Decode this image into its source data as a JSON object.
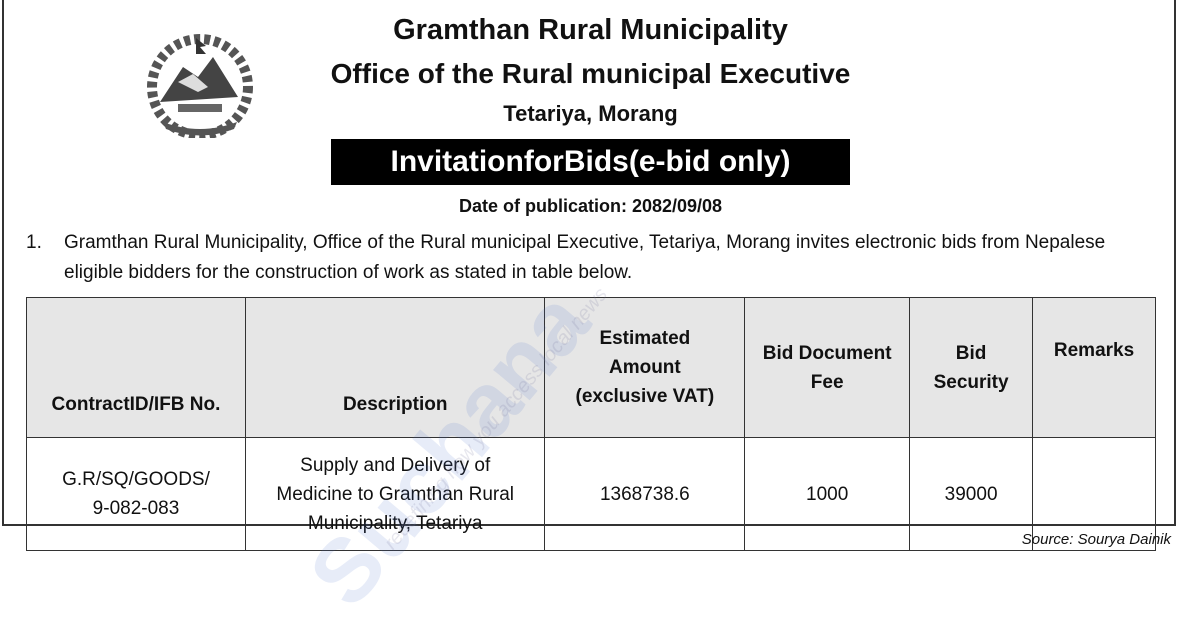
{
  "header": {
    "title": "Gramthan Rural Municipality",
    "office": "Office of the Rural municipal Executive",
    "location": "Tetariya, Morang",
    "notice_title": "InvitationforBids(e-bid only)",
    "date": "Date of publication: 2082/09/08"
  },
  "body": {
    "number": "1.",
    "text": "Gramthan Rural Municipality, Office of the Rural municipal Executive, Tetariya, Morang invites electronic bids from Nepalese eligible bidders for the construction of work as stated in table below."
  },
  "table": {
    "headers": [
      "ContractID/IFB No.",
      "Description",
      "Estimated Amount (exclusive VAT)",
      "Bid Document Fee",
      "Bid Security",
      "Remarks"
    ],
    "rows": [
      [
        "G.R/SQ/GOODS/ 9-082-083",
        "Supply and Delivery of Medicine to Gramthan Rural Municipality, Tetariya",
        "1368738.6",
        "1000",
        "39000",
        ""
      ]
    ]
  },
  "source": "Source: Sourya Dainik",
  "watermark": {
    "brand": "Suchana",
    "tagline": "redefining how you access local news"
  },
  "logo": "nepal-emblem"
}
